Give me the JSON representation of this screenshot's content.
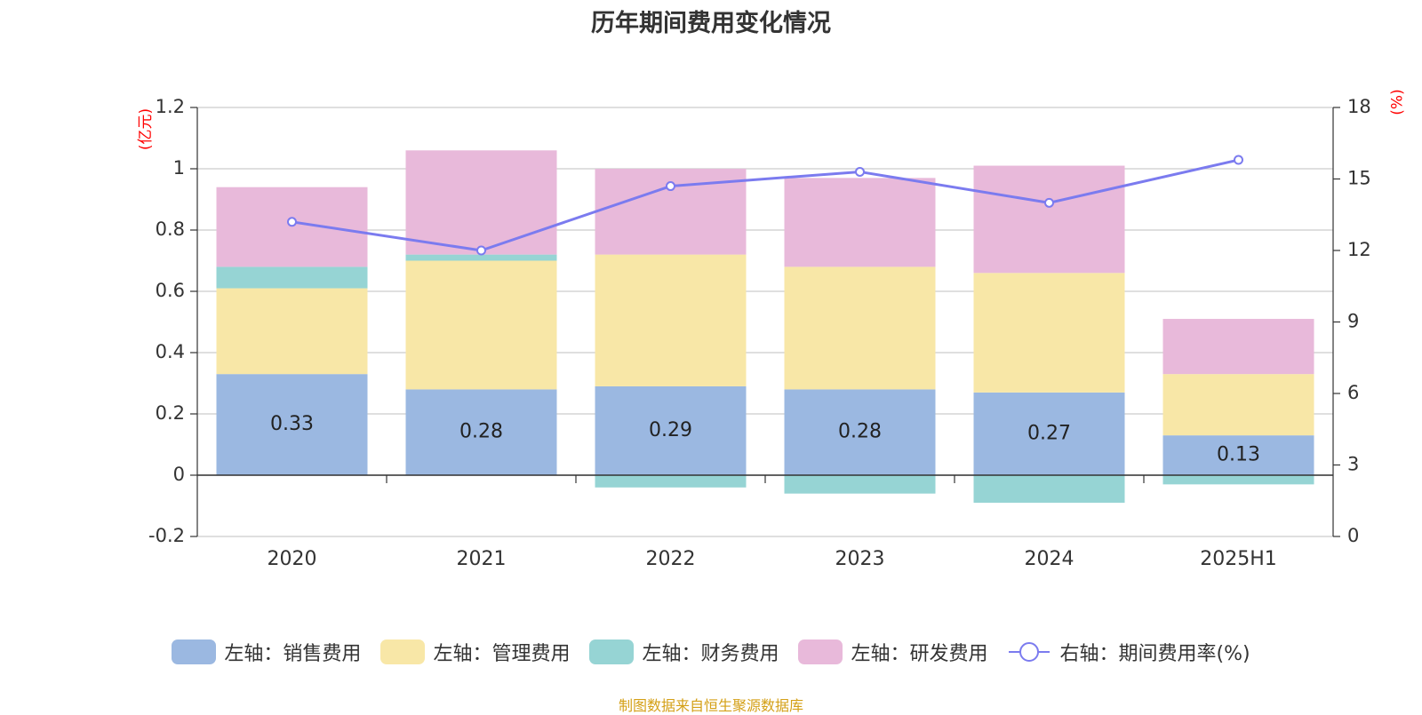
{
  "title": "历年期间费用变化情况",
  "unit_left": "(亿元)",
  "unit_right": "(%)",
  "source": "制图数据来自恒生聚源数据库",
  "chart_data": {
    "type": "bar",
    "stacked": true,
    "categories": [
      "2020",
      "2021",
      "2022",
      "2023",
      "2024",
      "2025H1"
    ],
    "series": [
      {
        "name": "左轴：销售费用",
        "axis": "left",
        "color": "#9bb8e1",
        "values": [
          0.33,
          0.28,
          0.29,
          0.28,
          0.27,
          0.13
        ],
        "labels": [
          "0.33",
          "0.28",
          "0.29",
          "0.28",
          "0.27",
          "0.13"
        ]
      },
      {
        "name": "左轴：管理费用",
        "axis": "left",
        "color": "#f8e7a7",
        "values": [
          0.28,
          0.42,
          0.43,
          0.4,
          0.39,
          0.2
        ]
      },
      {
        "name": "左轴：财务费用",
        "axis": "left",
        "color": "#96d4d4",
        "values": [
          0.07,
          0.02,
          -0.04,
          -0.06,
          -0.09,
          -0.03
        ]
      },
      {
        "name": "左轴：研发费用",
        "axis": "left",
        "color": "#e8b9da",
        "values": [
          0.26,
          0.34,
          0.28,
          0.29,
          0.35,
          0.18
        ]
      }
    ],
    "line": {
      "name": "右轴：期间费用率(%)",
      "axis": "right",
      "color": "#7b7bef",
      "values": [
        13.2,
        12.0,
        14.7,
        15.3,
        14.0,
        15.8
      ]
    },
    "left_axis": {
      "min": -0.2,
      "max": 1.2,
      "ticks": [
        "-0.2",
        "0",
        "0.2",
        "0.4",
        "0.6",
        "0.8",
        "1",
        "1.2"
      ]
    },
    "right_axis": {
      "min": 0,
      "max": 18,
      "ticks": [
        "0",
        "3",
        "6",
        "9",
        "12",
        "15",
        "18"
      ]
    },
    "grid": true,
    "legend": "bottom"
  }
}
